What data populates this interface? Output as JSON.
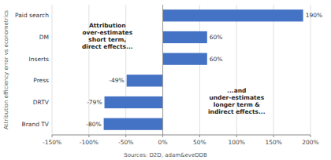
{
  "chart_data": {
    "type": "bar",
    "orientation": "horizontal",
    "ylabel": "Attribution efficiency error vs econometrics",
    "source": "Sources: D2D, adam&eveDDB",
    "annotations": [
      "Attribution\nover-estimates\nshort term,\ndirect effects...",
      "...and\nunder-estimates\nlonger term &\nindirect effects..."
    ],
    "categories": [
      "Brand TV",
      "DRTV",
      "Press",
      "Inserts",
      "DM",
      "Paid search"
    ],
    "values": [
      -80,
      -79,
      -49,
      60,
      60,
      190
    ],
    "value_labels": [
      "-80%",
      "-79%",
      "-49%",
      "60%",
      "60%",
      "190%"
    ],
    "data_labels": true,
    "color": "#4472C4",
    "xlim": [
      -150,
      200
    ],
    "xticks": [
      {
        "value": -150,
        "label": "-150%"
      },
      {
        "value": -100,
        "label": "-100%"
      },
      {
        "value": -50,
        "label": "-50%"
      },
      {
        "value": 0,
        "label": "0%"
      },
      {
        "value": 50,
        "label": "50%"
      },
      {
        "value": 100,
        "label": "100%"
      },
      {
        "value": 150,
        "label": "150%"
      },
      {
        "value": 200,
        "label": "200%"
      }
    ],
    "grid": true
  }
}
